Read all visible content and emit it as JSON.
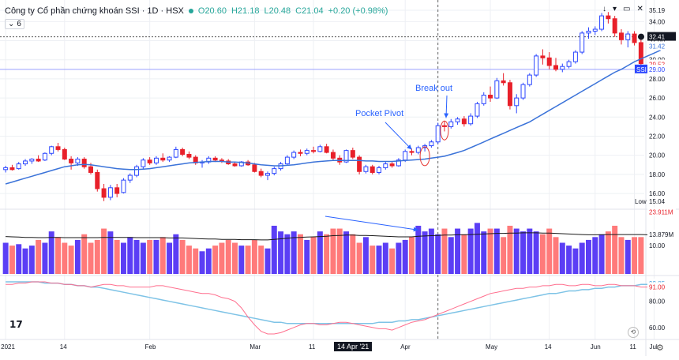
{
  "header": {
    "title": "Công ty Cổ phần chứng khoán SSI · 1D · HSX",
    "open_label": "O",
    "open": "20.60",
    "high_label": "H",
    "high": "21.18",
    "low_label": "L",
    "low": "20.48",
    "close_label": "C",
    "close": "21.04",
    "change": "+0.20 (+0.98%)",
    "indicator_count": "6"
  },
  "annotations": {
    "pocket_pivot": "Pocket Pivot",
    "break_out": "Break out"
  },
  "crosshair_date": "14 Apr '21",
  "price_badges": {
    "last": "32.41",
    "ma": "31.42",
    "mid": "29.52",
    "symbol": "SSI",
    "symbol_price": "29.00",
    "low_label": "Low",
    "low_price": "15.04"
  },
  "volume_badges": {
    "vol": "23.911M",
    "vol_ma": "13.879M"
  },
  "rs_badges": {
    "a": "93.85",
    "b": "91.00"
  },
  "colors": {
    "up": "#5b3ef5",
    "down": "#ff7a7a",
    "up_candle": "#2b46ff",
    "down_candle": "#e8202a",
    "ma": "#3b73d9",
    "vol_ma": "#1a1a1a",
    "rs_pink": "#ff6f8e",
    "rs_blue": "#7ec3e6",
    "annot": "#2962ff",
    "grid": "#eef0f4"
  },
  "chart_data": [
    {
      "type": "candlestick",
      "title": "",
      "price_axis": {
        "ticks": [
          "35.19",
          "34.00",
          "32.00",
          "30.00",
          "28.00",
          "26.00",
          "24.00",
          "22.00",
          "20.00",
          "18.00",
          "16.00"
        ],
        "ylim": [
          14.6,
          35.6
        ]
      },
      "x_axis": {
        "ticks": [
          "2021",
          "14",
          "Feb",
          "Mar",
          "11",
          "Apr",
          "14 Apr '21",
          "May",
          "14",
          "Jun",
          "11",
          "Jul"
        ]
      },
      "grid": true,
      "candles": [
        {
          "o": 18.5,
          "h": 18.9,
          "l": 18.2,
          "c": 18.7
        },
        {
          "o": 18.7,
          "h": 19.0,
          "l": 18.4,
          "c": 18.5
        },
        {
          "o": 18.6,
          "h": 19.3,
          "l": 18.5,
          "c": 19.1
        },
        {
          "o": 19.1,
          "h": 19.6,
          "l": 18.9,
          "c": 19.4
        },
        {
          "o": 19.4,
          "h": 19.7,
          "l": 19.1,
          "c": 19.6
        },
        {
          "o": 19.6,
          "h": 20.0,
          "l": 19.3,
          "c": 19.4
        },
        {
          "o": 19.5,
          "h": 20.3,
          "l": 19.4,
          "c": 20.2
        },
        {
          "o": 20.2,
          "h": 21.0,
          "l": 20.0,
          "c": 20.9
        },
        {
          "o": 20.9,
          "h": 21.3,
          "l": 20.4,
          "c": 20.6
        },
        {
          "o": 20.6,
          "h": 20.8,
          "l": 19.5,
          "c": 19.6
        },
        {
          "o": 19.6,
          "h": 19.9,
          "l": 18.5,
          "c": 19.2
        },
        {
          "o": 19.2,
          "h": 19.8,
          "l": 18.9,
          "c": 19.6
        },
        {
          "o": 19.6,
          "h": 19.8,
          "l": 18.6,
          "c": 18.8
        },
        {
          "o": 18.8,
          "h": 19.2,
          "l": 18.0,
          "c": 18.2
        },
        {
          "o": 18.2,
          "h": 18.5,
          "l": 16.2,
          "c": 16.5
        },
        {
          "o": 16.5,
          "h": 17.0,
          "l": 15.2,
          "c": 15.6
        },
        {
          "o": 15.6,
          "h": 16.9,
          "l": 15.3,
          "c": 16.6
        },
        {
          "o": 16.6,
          "h": 17.0,
          "l": 15.6,
          "c": 16.0
        },
        {
          "o": 16.1,
          "h": 17.6,
          "l": 16.0,
          "c": 17.4
        },
        {
          "o": 17.4,
          "h": 18.1,
          "l": 17.1,
          "c": 17.9
        },
        {
          "o": 17.9,
          "h": 19.0,
          "l": 17.7,
          "c": 18.8
        },
        {
          "o": 18.8,
          "h": 19.7,
          "l": 18.6,
          "c": 19.5
        },
        {
          "o": 19.5,
          "h": 19.8,
          "l": 19.0,
          "c": 19.2
        },
        {
          "o": 19.2,
          "h": 19.9,
          "l": 19.0,
          "c": 19.7
        },
        {
          "o": 19.7,
          "h": 20.2,
          "l": 19.3,
          "c": 19.5
        },
        {
          "o": 19.5,
          "h": 19.9,
          "l": 19.3,
          "c": 19.8
        },
        {
          "o": 19.8,
          "h": 20.9,
          "l": 19.7,
          "c": 20.6
        },
        {
          "o": 20.6,
          "h": 20.8,
          "l": 19.9,
          "c": 20.1
        },
        {
          "o": 20.1,
          "h": 20.4,
          "l": 19.6,
          "c": 19.8
        },
        {
          "o": 19.8,
          "h": 20.0,
          "l": 19.0,
          "c": 19.2
        },
        {
          "o": 19.2,
          "h": 19.5,
          "l": 18.7,
          "c": 19.3
        },
        {
          "o": 19.3,
          "h": 19.9,
          "l": 19.1,
          "c": 19.7
        },
        {
          "o": 19.7,
          "h": 19.9,
          "l": 19.3,
          "c": 19.5
        },
        {
          "o": 19.5,
          "h": 19.7,
          "l": 19.2,
          "c": 19.4
        },
        {
          "o": 19.4,
          "h": 19.6,
          "l": 19.0,
          "c": 19.1
        },
        {
          "o": 19.1,
          "h": 19.3,
          "l": 18.8,
          "c": 18.9
        },
        {
          "o": 18.9,
          "h": 19.4,
          "l": 18.8,
          "c": 19.3
        },
        {
          "o": 19.3,
          "h": 19.5,
          "l": 18.9,
          "c": 19.0
        },
        {
          "o": 19.0,
          "h": 19.2,
          "l": 18.2,
          "c": 18.3
        },
        {
          "o": 18.3,
          "h": 18.6,
          "l": 17.7,
          "c": 17.9
        },
        {
          "o": 17.9,
          "h": 18.3,
          "l": 17.4,
          "c": 18.1
        },
        {
          "o": 18.1,
          "h": 18.8,
          "l": 17.9,
          "c": 18.6
        },
        {
          "o": 18.6,
          "h": 19.3,
          "l": 18.4,
          "c": 19.1
        },
        {
          "o": 19.1,
          "h": 20.0,
          "l": 19.0,
          "c": 19.8
        },
        {
          "o": 19.8,
          "h": 20.5,
          "l": 19.6,
          "c": 20.3
        },
        {
          "o": 20.3,
          "h": 20.6,
          "l": 19.9,
          "c": 20.2
        },
        {
          "o": 20.2,
          "h": 20.7,
          "l": 20.0,
          "c": 20.5
        },
        {
          "o": 20.5,
          "h": 20.9,
          "l": 20.2,
          "c": 20.4
        },
        {
          "o": 20.4,
          "h": 21.1,
          "l": 20.3,
          "c": 20.9
        },
        {
          "o": 20.9,
          "h": 21.2,
          "l": 20.2,
          "c": 20.3
        },
        {
          "o": 20.3,
          "h": 20.6,
          "l": 19.5,
          "c": 19.7
        },
        {
          "o": 19.7,
          "h": 20.0,
          "l": 19.0,
          "c": 19.3
        },
        {
          "o": 19.3,
          "h": 20.6,
          "l": 19.2,
          "c": 20.5
        },
        {
          "o": 20.5,
          "h": 20.8,
          "l": 19.6,
          "c": 19.8
        },
        {
          "o": 19.8,
          "h": 20.0,
          "l": 18.0,
          "c": 18.3
        },
        {
          "o": 18.3,
          "h": 19.0,
          "l": 18.1,
          "c": 18.8
        },
        {
          "o": 18.8,
          "h": 19.0,
          "l": 18.0,
          "c": 18.2
        },
        {
          "o": 18.2,
          "h": 18.9,
          "l": 18.0,
          "c": 18.7
        },
        {
          "o": 18.7,
          "h": 19.3,
          "l": 18.5,
          "c": 19.1
        },
        {
          "o": 19.1,
          "h": 19.3,
          "l": 18.7,
          "c": 18.9
        },
        {
          "o": 18.9,
          "h": 19.7,
          "l": 18.8,
          "c": 19.5
        },
        {
          "o": 19.5,
          "h": 20.6,
          "l": 19.3,
          "c": 20.4
        },
        {
          "o": 20.4,
          "h": 20.7,
          "l": 20.0,
          "c": 20.3
        },
        {
          "o": 20.3,
          "h": 21.0,
          "l": 20.1,
          "c": 20.8
        },
        {
          "o": 20.8,
          "h": 21.2,
          "l": 20.4,
          "c": 21.0
        },
        {
          "o": 21.0,
          "h": 21.6,
          "l": 20.8,
          "c": 21.4
        },
        {
          "o": 21.4,
          "h": 23.4,
          "l": 21.2,
          "c": 23.1
        },
        {
          "o": 23.1,
          "h": 23.6,
          "l": 22.5,
          "c": 23.0
        },
        {
          "o": 23.0,
          "h": 23.8,
          "l": 22.8,
          "c": 23.5
        },
        {
          "o": 23.5,
          "h": 24.0,
          "l": 23.2,
          "c": 23.8
        },
        {
          "o": 23.8,
          "h": 24.1,
          "l": 23.0,
          "c": 23.3
        },
        {
          "o": 23.3,
          "h": 24.4,
          "l": 23.1,
          "c": 24.1
        },
        {
          "o": 24.1,
          "h": 25.6,
          "l": 23.9,
          "c": 25.4
        },
        {
          "o": 25.4,
          "h": 26.6,
          "l": 25.2,
          "c": 26.3
        },
        {
          "o": 26.3,
          "h": 27.2,
          "l": 25.6,
          "c": 26.0
        },
        {
          "o": 26.0,
          "h": 28.1,
          "l": 25.9,
          "c": 27.8
        },
        {
          "o": 27.8,
          "h": 28.6,
          "l": 27.3,
          "c": 27.6
        },
        {
          "o": 27.6,
          "h": 27.9,
          "l": 24.8,
          "c": 25.2
        },
        {
          "o": 25.2,
          "h": 26.4,
          "l": 24.4,
          "c": 26.0
        },
        {
          "o": 26.0,
          "h": 27.6,
          "l": 25.8,
          "c": 27.4
        },
        {
          "o": 27.4,
          "h": 28.6,
          "l": 27.2,
          "c": 28.4
        },
        {
          "o": 28.4,
          "h": 30.6,
          "l": 28.2,
          "c": 30.4
        },
        {
          "o": 30.4,
          "h": 31.1,
          "l": 29.5,
          "c": 30.2
        },
        {
          "o": 30.2,
          "h": 30.8,
          "l": 29.0,
          "c": 29.4
        },
        {
          "o": 29.4,
          "h": 30.2,
          "l": 28.8,
          "c": 29.0
        },
        {
          "o": 29.0,
          "h": 29.6,
          "l": 28.7,
          "c": 29.3
        },
        {
          "o": 29.3,
          "h": 30.0,
          "l": 29.1,
          "c": 29.8
        },
        {
          "o": 29.8,
          "h": 31.0,
          "l": 29.6,
          "c": 30.8
        },
        {
          "o": 30.8,
          "h": 33.0,
          "l": 30.6,
          "c": 32.8
        },
        {
          "o": 32.8,
          "h": 33.4,
          "l": 32.2,
          "c": 33.0
        },
        {
          "o": 33.0,
          "h": 33.5,
          "l": 32.6,
          "c": 33.2
        },
        {
          "o": 33.2,
          "h": 34.9,
          "l": 33.0,
          "c": 34.6
        },
        {
          "o": 34.6,
          "h": 35.0,
          "l": 33.8,
          "c": 34.3
        },
        {
          "o": 34.3,
          "h": 34.6,
          "l": 32.4,
          "c": 32.8
        },
        {
          "o": 32.8,
          "h": 33.2,
          "l": 31.6,
          "c": 32.1
        },
        {
          "o": 32.1,
          "h": 33.0,
          "l": 31.3,
          "c": 32.7
        },
        {
          "o": 32.7,
          "h": 33.0,
          "l": 31.5,
          "c": 31.8
        },
        {
          "o": 31.8,
          "h": 32.2,
          "l": 29.3,
          "c": 29.6
        }
      ],
      "ma": [
        17.0,
        17.2,
        17.4,
        17.6,
        17.8,
        18.0,
        18.2,
        18.4,
        18.6,
        18.8,
        18.9,
        19.0,
        19.05,
        19.0,
        18.9,
        18.8,
        18.7,
        18.6,
        18.55,
        18.5,
        18.5,
        18.55,
        18.6,
        18.7,
        18.8,
        18.9,
        19.0,
        19.1,
        19.2,
        19.25,
        19.3,
        19.35,
        19.35,
        19.35,
        19.3,
        19.3,
        19.25,
        19.2,
        19.1,
        19.0,
        18.95,
        18.9,
        18.9,
        18.95,
        19.0,
        19.1,
        19.2,
        19.3,
        19.35,
        19.4,
        19.45,
        19.45,
        19.45,
        19.45,
        19.45,
        19.4,
        19.4,
        19.35,
        19.35,
        19.35,
        19.4,
        19.45,
        19.5,
        19.55,
        19.6,
        19.7,
        19.8,
        19.9,
        20.1,
        20.3,
        20.5,
        20.8,
        21.1,
        21.4,
        21.7,
        22.0,
        22.3,
        22.6,
        22.9,
        23.2,
        23.5,
        23.9,
        24.3,
        24.7,
        25.1,
        25.5,
        25.9,
        26.3,
        26.7,
        27.1,
        27.5,
        27.9,
        28.3,
        28.7,
        29.0,
        29.4,
        29.8,
        30.1,
        30.4,
        30.7,
        31.0
      ]
    },
    {
      "type": "bar",
      "title": "Volume",
      "axis": {
        "ticks": [
          "10.00"
        ]
      },
      "values": [
        11,
        10,
        10.5,
        9,
        10,
        12,
        11,
        15,
        13,
        11,
        10,
        12,
        14,
        11,
        12,
        16,
        15,
        12,
        11,
        13,
        12,
        11,
        12,
        12,
        13,
        11,
        14,
        12,
        10,
        9,
        8,
        9,
        10,
        11,
        12,
        11,
        10,
        10,
        12,
        10,
        9,
        17,
        15,
        14,
        15,
        14,
        12,
        13,
        15,
        14,
        16,
        16,
        15,
        14,
        11,
        13,
        10,
        10,
        11,
        9,
        11,
        12,
        13,
        17,
        15,
        16,
        14,
        16,
        13,
        16,
        14,
        16,
        18,
        15,
        16,
        16,
        13,
        17,
        16,
        15,
        16,
        15,
        14,
        16,
        13,
        11,
        10,
        9,
        11,
        12,
        13,
        14,
        15,
        17,
        13,
        12,
        13,
        13,
        11,
        16,
        14
      ],
      "ma": [
        13.2,
        13.1,
        13.0,
        12.9,
        12.9,
        12.8,
        12.8,
        12.9,
        12.9,
        12.8,
        12.8,
        12.8,
        12.8,
        12.8,
        12.8,
        12.9,
        12.9,
        12.9,
        12.9,
        12.9,
        12.8,
        12.8,
        12.8,
        12.8,
        12.8,
        12.7,
        12.7,
        12.7,
        12.6,
        12.5,
        12.4,
        12.3,
        12.3,
        12.2,
        12.2,
        12.2,
        12.1,
        12.1,
        12.1,
        12.0,
        12.0,
        12.2,
        12.4,
        12.6,
        12.8,
        12.9,
        13.0,
        13.1,
        13.2,
        13.3,
        13.5,
        13.6,
        13.7,
        13.7,
        13.6,
        13.6,
        13.5,
        13.4,
        13.3,
        13.2,
        13.1,
        13.1,
        13.1,
        13.3,
        13.4,
        13.5,
        13.6,
        13.7,
        13.7,
        13.8,
        13.8,
        13.9,
        14.0,
        14.1,
        14.2,
        14.3,
        14.3,
        14.4,
        14.4,
        14.5,
        14.5,
        14.5,
        14.4,
        14.4,
        14.3,
        14.2,
        14.1,
        14.0,
        13.9,
        13.8,
        13.8,
        13.8,
        13.9,
        13.9,
        13.9,
        13.9,
        13.9,
        13.9,
        13.8,
        13.9,
        13.9
      ]
    },
    {
      "type": "line",
      "title": "RS",
      "axis": {
        "ticks": [
          "80.00",
          "60.00"
        ],
        "ylim": [
          52,
          98
        ]
      },
      "series": [
        {
          "values": [
            93,
            93,
            94,
            94,
            95,
            95,
            95,
            94,
            94,
            93,
            93,
            92,
            92,
            91,
            92,
            93,
            93,
            92,
            92,
            91,
            91,
            91,
            91,
            92,
            92,
            91,
            90,
            89,
            88,
            87,
            86,
            86,
            85,
            83,
            82,
            80,
            75,
            68,
            62,
            57,
            55,
            55,
            56,
            58,
            60,
            62,
            63,
            63,
            62,
            62,
            63,
            64,
            64,
            63,
            62,
            61,
            60,
            59,
            59,
            58,
            60,
            62,
            64,
            65,
            66,
            68,
            70,
            72,
            74,
            76,
            78,
            80,
            82,
            84,
            86,
            87,
            88,
            89,
            90,
            90,
            91,
            91,
            92,
            92,
            93,
            93,
            92,
            92,
            93,
            93,
            92,
            92,
            93,
            93,
            92,
            92,
            92,
            91,
            91,
            91,
            91
          ]
        },
        {
          "values": [
            95,
            95,
            95,
            95,
            95,
            95,
            94,
            94,
            94,
            93,
            93,
            92,
            92,
            91,
            91,
            90,
            89,
            88,
            87,
            86,
            85,
            84,
            83,
            82,
            81,
            80,
            79,
            78,
            77,
            76,
            75,
            74,
            73,
            72,
            71,
            70,
            69,
            68,
            67,
            66,
            65,
            64,
            64,
            63,
            63,
            63,
            63,
            63,
            63,
            63,
            63,
            63,
            63,
            63,
            63,
            63,
            63,
            64,
            64,
            64,
            65,
            65,
            66,
            66,
            67,
            68,
            69,
            70,
            71,
            72,
            73,
            74,
            75,
            76,
            77,
            78,
            79,
            80,
            81,
            82,
            83,
            84,
            85,
            86,
            86,
            87,
            88,
            88,
            89,
            89,
            90,
            90,
            91,
            91,
            92,
            92,
            92,
            93,
            93,
            93,
            93
          ]
        }
      ]
    }
  ]
}
